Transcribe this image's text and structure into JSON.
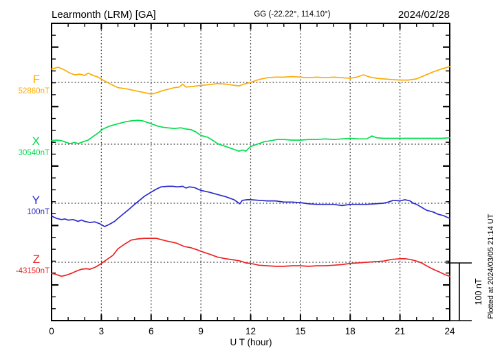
{
  "header": {
    "station": "Learmonth (LRM) [GA]",
    "coords": "GG (-22.22°, 114.10°)",
    "date": "2024/02/28"
  },
  "axes": {
    "x_label": "U T (hour)",
    "x_ticks": [
      0,
      3,
      6,
      9,
      12,
      15,
      18,
      21,
      24
    ],
    "x_range": [
      0,
      24
    ],
    "grid_hours": [
      3,
      6,
      9,
      12,
      15,
      18,
      21
    ]
  },
  "scale_bar": {
    "label": "100 nT",
    "nT": 100
  },
  "footer_note": "Plotted at 2024/03/05 21:14 UT",
  "chart_data": {
    "type": "line",
    "title": "Learmonth (LRM) [GA] magnetogram 2024/02/28",
    "xlabel": "U T (hour)",
    "x_range": [
      0,
      24
    ],
    "grid": "dotted vertical every 3 h; dotted horizontal at each trace base value",
    "legend_position": "left of traces",
    "y_scale_note": "offsets in nT relative to each trace base value; scale bar = 100 nT",
    "series": [
      {
        "name": "F",
        "base_label": "52860nT",
        "base_nT": 52860,
        "color": "#FFAB00",
        "points": [
          [
            0,
            23
          ],
          [
            0.4,
            26
          ],
          [
            0.8,
            21
          ],
          [
            1.1,
            16
          ],
          [
            1.4,
            13
          ],
          [
            1.7,
            14
          ],
          [
            2.0,
            12
          ],
          [
            2.2,
            16
          ],
          [
            2.5,
            12
          ],
          [
            2.8,
            9
          ],
          [
            3.1,
            4
          ],
          [
            3.5,
            -2
          ],
          [
            4,
            -9
          ],
          [
            4.5,
            -11
          ],
          [
            5,
            -14
          ],
          [
            5.5,
            -17
          ],
          [
            6,
            -20
          ],
          [
            6.3,
            -18
          ],
          [
            6.7,
            -14
          ],
          [
            7,
            -12
          ],
          [
            7.4,
            -9
          ],
          [
            7.7,
            -8
          ],
          [
            7.9,
            -3
          ],
          [
            8.1,
            -8
          ],
          [
            8.5,
            -7
          ],
          [
            9,
            -5
          ],
          [
            9.5,
            -4
          ],
          [
            10,
            -2
          ],
          [
            10.5,
            -3
          ],
          [
            11,
            -5
          ],
          [
            11.3,
            -6
          ],
          [
            11.6,
            -3
          ],
          [
            12,
            0
          ],
          [
            12.5,
            5
          ],
          [
            13,
            8
          ],
          [
            13.5,
            9
          ],
          [
            14,
            9
          ],
          [
            14.5,
            10
          ],
          [
            15,
            9
          ],
          [
            15.5,
            8
          ],
          [
            16,
            9
          ],
          [
            16.5,
            8
          ],
          [
            17,
            9
          ],
          [
            17.5,
            8
          ],
          [
            18,
            7
          ],
          [
            18.4,
            9
          ],
          [
            18.8,
            13
          ],
          [
            19.2,
            9
          ],
          [
            19.6,
            7
          ],
          [
            20,
            6
          ],
          [
            20.5,
            5
          ],
          [
            21,
            4
          ],
          [
            21.5,
            4
          ],
          [
            22,
            6
          ],
          [
            22.5,
            12
          ],
          [
            23,
            18
          ],
          [
            23.5,
            23
          ],
          [
            24,
            27
          ]
        ]
      },
      {
        "name": "X",
        "base_label": "30540nT",
        "base_nT": 30540,
        "color": "#00DD4C",
        "points": [
          [
            0,
            6
          ],
          [
            0.3,
            7
          ],
          [
            0.6,
            6
          ],
          [
            0.9,
            3
          ],
          [
            1.1,
            1
          ],
          [
            1.4,
            3
          ],
          [
            1.6,
            1
          ],
          [
            1.9,
            4
          ],
          [
            2.2,
            7
          ],
          [
            2.5,
            13
          ],
          [
            2.8,
            19
          ],
          [
            3.1,
            26
          ],
          [
            3.5,
            31
          ],
          [
            4,
            35
          ],
          [
            4.4,
            38
          ],
          [
            4.8,
            40
          ],
          [
            5.2,
            41
          ],
          [
            5.5,
            40
          ],
          [
            5.8,
            37
          ],
          [
            6.1,
            34
          ],
          [
            6.4,
            31
          ],
          [
            6.7,
            29
          ],
          [
            7,
            28
          ],
          [
            7.4,
            27
          ],
          [
            7.8,
            28
          ],
          [
            8.1,
            26
          ],
          [
            8.4,
            25
          ],
          [
            8.7,
            21
          ],
          [
            9,
            15
          ],
          [
            9.4,
            12
          ],
          [
            9.7,
            7
          ],
          [
            10,
            1
          ],
          [
            10.4,
            -3
          ],
          [
            10.8,
            -7
          ],
          [
            11.1,
            -10
          ],
          [
            11.3,
            -12
          ],
          [
            11.5,
            -10
          ],
          [
            11.7,
            -12
          ],
          [
            12,
            -4
          ],
          [
            12.4,
            0
          ],
          [
            12.8,
            4
          ],
          [
            13.2,
            6
          ],
          [
            13.6,
            8
          ],
          [
            14,
            8
          ],
          [
            14.5,
            7
          ],
          [
            15,
            7
          ],
          [
            15.5,
            8
          ],
          [
            16,
            8
          ],
          [
            16.5,
            9
          ],
          [
            17,
            8
          ],
          [
            17.5,
            9
          ],
          [
            18,
            10
          ],
          [
            18.5,
            9
          ],
          [
            19,
            9
          ],
          [
            19.3,
            14
          ],
          [
            19.6,
            11
          ],
          [
            20,
            10
          ],
          [
            20.5,
            10
          ],
          [
            21,
            10
          ],
          [
            21.5,
            10
          ],
          [
            22,
            10
          ],
          [
            22.5,
            10
          ],
          [
            23,
            10
          ],
          [
            23.5,
            10
          ],
          [
            24,
            11
          ]
        ]
      },
      {
        "name": "Y",
        "base_label": "100nT",
        "base_nT": 100,
        "color": "#2A2ACC",
        "points": [
          [
            0,
            -22
          ],
          [
            0.3,
            -26
          ],
          [
            0.6,
            -28
          ],
          [
            0.8,
            -27
          ],
          [
            1,
            -29
          ],
          [
            1.3,
            -28
          ],
          [
            1.6,
            -31
          ],
          [
            1.8,
            -29
          ],
          [
            2,
            -31
          ],
          [
            2.3,
            -33
          ],
          [
            2.6,
            -32
          ],
          [
            2.9,
            -35
          ],
          [
            3.2,
            -40
          ],
          [
            3.5,
            -36
          ],
          [
            3.8,
            -31
          ],
          [
            4,
            -26
          ],
          [
            4.3,
            -19
          ],
          [
            4.6,
            -12
          ],
          [
            5,
            -2
          ],
          [
            5.3,
            5
          ],
          [
            5.6,
            12
          ],
          [
            6,
            19
          ],
          [
            6.3,
            24
          ],
          [
            6.6,
            28
          ],
          [
            7,
            29
          ],
          [
            7.3,
            29
          ],
          [
            7.6,
            28
          ],
          [
            7.9,
            29
          ],
          [
            8.1,
            26
          ],
          [
            8.3,
            28
          ],
          [
            8.6,
            27
          ],
          [
            9,
            22
          ],
          [
            9.5,
            19
          ],
          [
            10,
            15
          ],
          [
            10.5,
            11
          ],
          [
            11,
            6
          ],
          [
            11.2,
            2
          ],
          [
            11.35,
            -1
          ],
          [
            11.5,
            5
          ],
          [
            11.8,
            6
          ],
          [
            12,
            6
          ],
          [
            12.5,
            5
          ],
          [
            13,
            4
          ],
          [
            13.5,
            4
          ],
          [
            14,
            2
          ],
          [
            14.5,
            2
          ],
          [
            15,
            1
          ],
          [
            15.5,
            -1
          ],
          [
            16,
            -2
          ],
          [
            16.5,
            -2
          ],
          [
            17,
            -2
          ],
          [
            17.5,
            -4
          ],
          [
            18,
            -2
          ],
          [
            18.5,
            -2
          ],
          [
            19,
            -2
          ],
          [
            19.5,
            -1
          ],
          [
            20,
            0
          ],
          [
            20.3,
            2
          ],
          [
            20.6,
            5
          ],
          [
            21,
            4
          ],
          [
            21.3,
            6
          ],
          [
            21.6,
            4
          ],
          [
            21.8,
            0
          ],
          [
            22,
            -2
          ],
          [
            22.3,
            -7
          ],
          [
            22.6,
            -12
          ],
          [
            23,
            -15
          ],
          [
            23.3,
            -19
          ],
          [
            23.6,
            -21
          ],
          [
            24,
            -26
          ]
        ]
      },
      {
        "name": "Z",
        "base_label": "-43150nT",
        "base_nT": -43150,
        "color": "#EE2222",
        "points": [
          [
            0,
            -19
          ],
          [
            0.3,
            -21
          ],
          [
            0.6,
            -24
          ],
          [
            0.9,
            -22
          ],
          [
            1.2,
            -19
          ],
          [
            1.5,
            -15
          ],
          [
            1.8,
            -12
          ],
          [
            2.1,
            -11
          ],
          [
            2.3,
            -12
          ],
          [
            2.6,
            -9
          ],
          [
            2.9,
            -4
          ],
          [
            3.1,
            0
          ],
          [
            3.4,
            6
          ],
          [
            3.7,
            12
          ],
          [
            4,
            23
          ],
          [
            4.4,
            31
          ],
          [
            4.8,
            38
          ],
          [
            5.2,
            40
          ],
          [
            5.6,
            41
          ],
          [
            6,
            41
          ],
          [
            6.3,
            41
          ],
          [
            6.6,
            39
          ],
          [
            7,
            36
          ],
          [
            7.5,
            33
          ],
          [
            8,
            27
          ],
          [
            8.4,
            25
          ],
          [
            8.8,
            21
          ],
          [
            9,
            19
          ],
          [
            9.5,
            14
          ],
          [
            10,
            9
          ],
          [
            10.5,
            6
          ],
          [
            11,
            4
          ],
          [
            11.4,
            2
          ],
          [
            11.7,
            -1
          ],
          [
            12,
            -2
          ],
          [
            12.5,
            -5
          ],
          [
            13,
            -6
          ],
          [
            13.5,
            -7
          ],
          [
            14,
            -7
          ],
          [
            14.5,
            -6
          ],
          [
            15,
            -6
          ],
          [
            15.5,
            -7
          ],
          [
            16,
            -6
          ],
          [
            16.5,
            -6
          ],
          [
            17,
            -5
          ],
          [
            17.5,
            -4
          ],
          [
            18,
            -2
          ],
          [
            18.5,
            -1
          ],
          [
            19,
            0
          ],
          [
            19.5,
            1
          ],
          [
            20,
            2
          ],
          [
            20.5,
            5
          ],
          [
            21,
            6
          ],
          [
            21.3,
            6
          ],
          [
            21.6,
            5
          ],
          [
            22,
            2
          ],
          [
            22.3,
            -1
          ],
          [
            22.6,
            -6
          ],
          [
            23,
            -12
          ],
          [
            23.4,
            -17
          ],
          [
            23.7,
            -21
          ],
          [
            24,
            -24
          ]
        ]
      }
    ]
  }
}
